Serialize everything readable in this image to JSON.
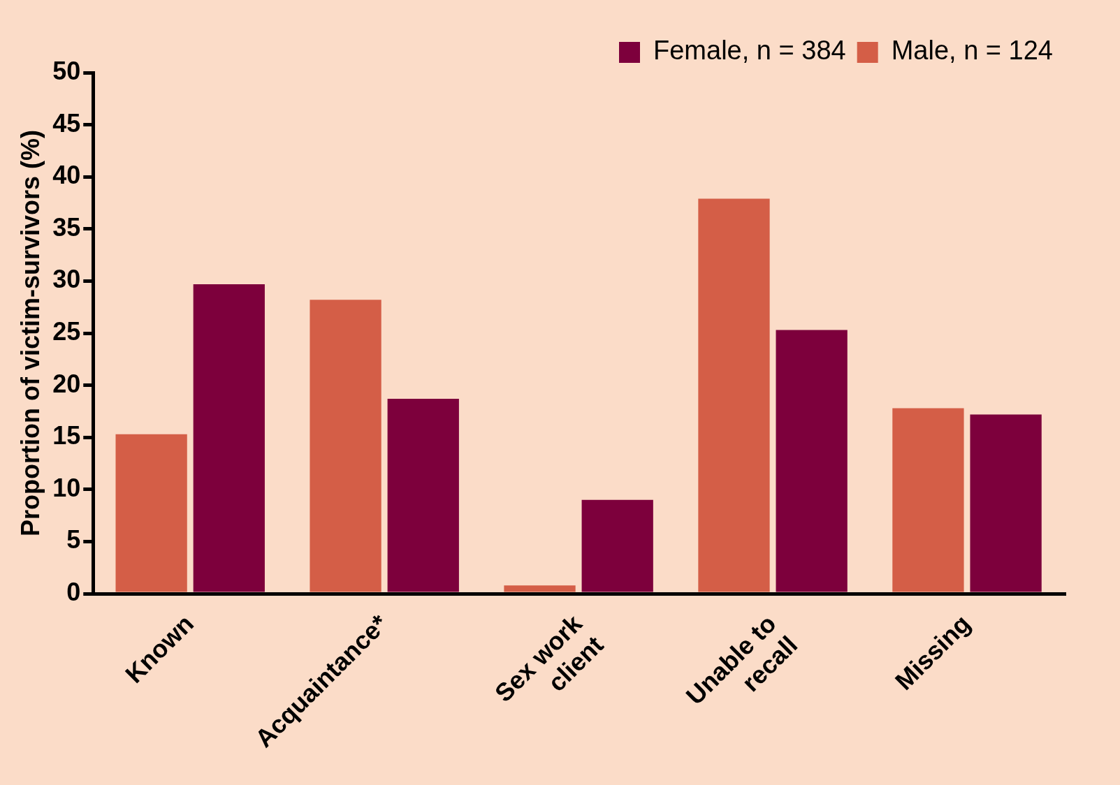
{
  "chart_data": {
    "type": "bar",
    "ylabel": "Proportion of victim-survivors (%)",
    "categories": [
      "Known",
      "Acquaintance*",
      "Sex work\nclient",
      "Unable to\nrecall",
      "Missing"
    ],
    "series": [
      {
        "name": "Male, n = 124",
        "color": "#d45e47",
        "values": [
          15.3,
          28.2,
          0.8,
          37.9,
          17.8
        ]
      },
      {
        "name": "Female, n = 384",
        "color": "#7d003c",
        "values": [
          29.7,
          18.7,
          9.0,
          25.3,
          17.2
        ]
      }
    ],
    "ylim": [
      0,
      50
    ],
    "yticks": [
      0,
      5,
      10,
      15,
      20,
      25,
      30,
      35,
      40,
      45,
      50
    ],
    "grid": false,
    "legend": "top right"
  }
}
